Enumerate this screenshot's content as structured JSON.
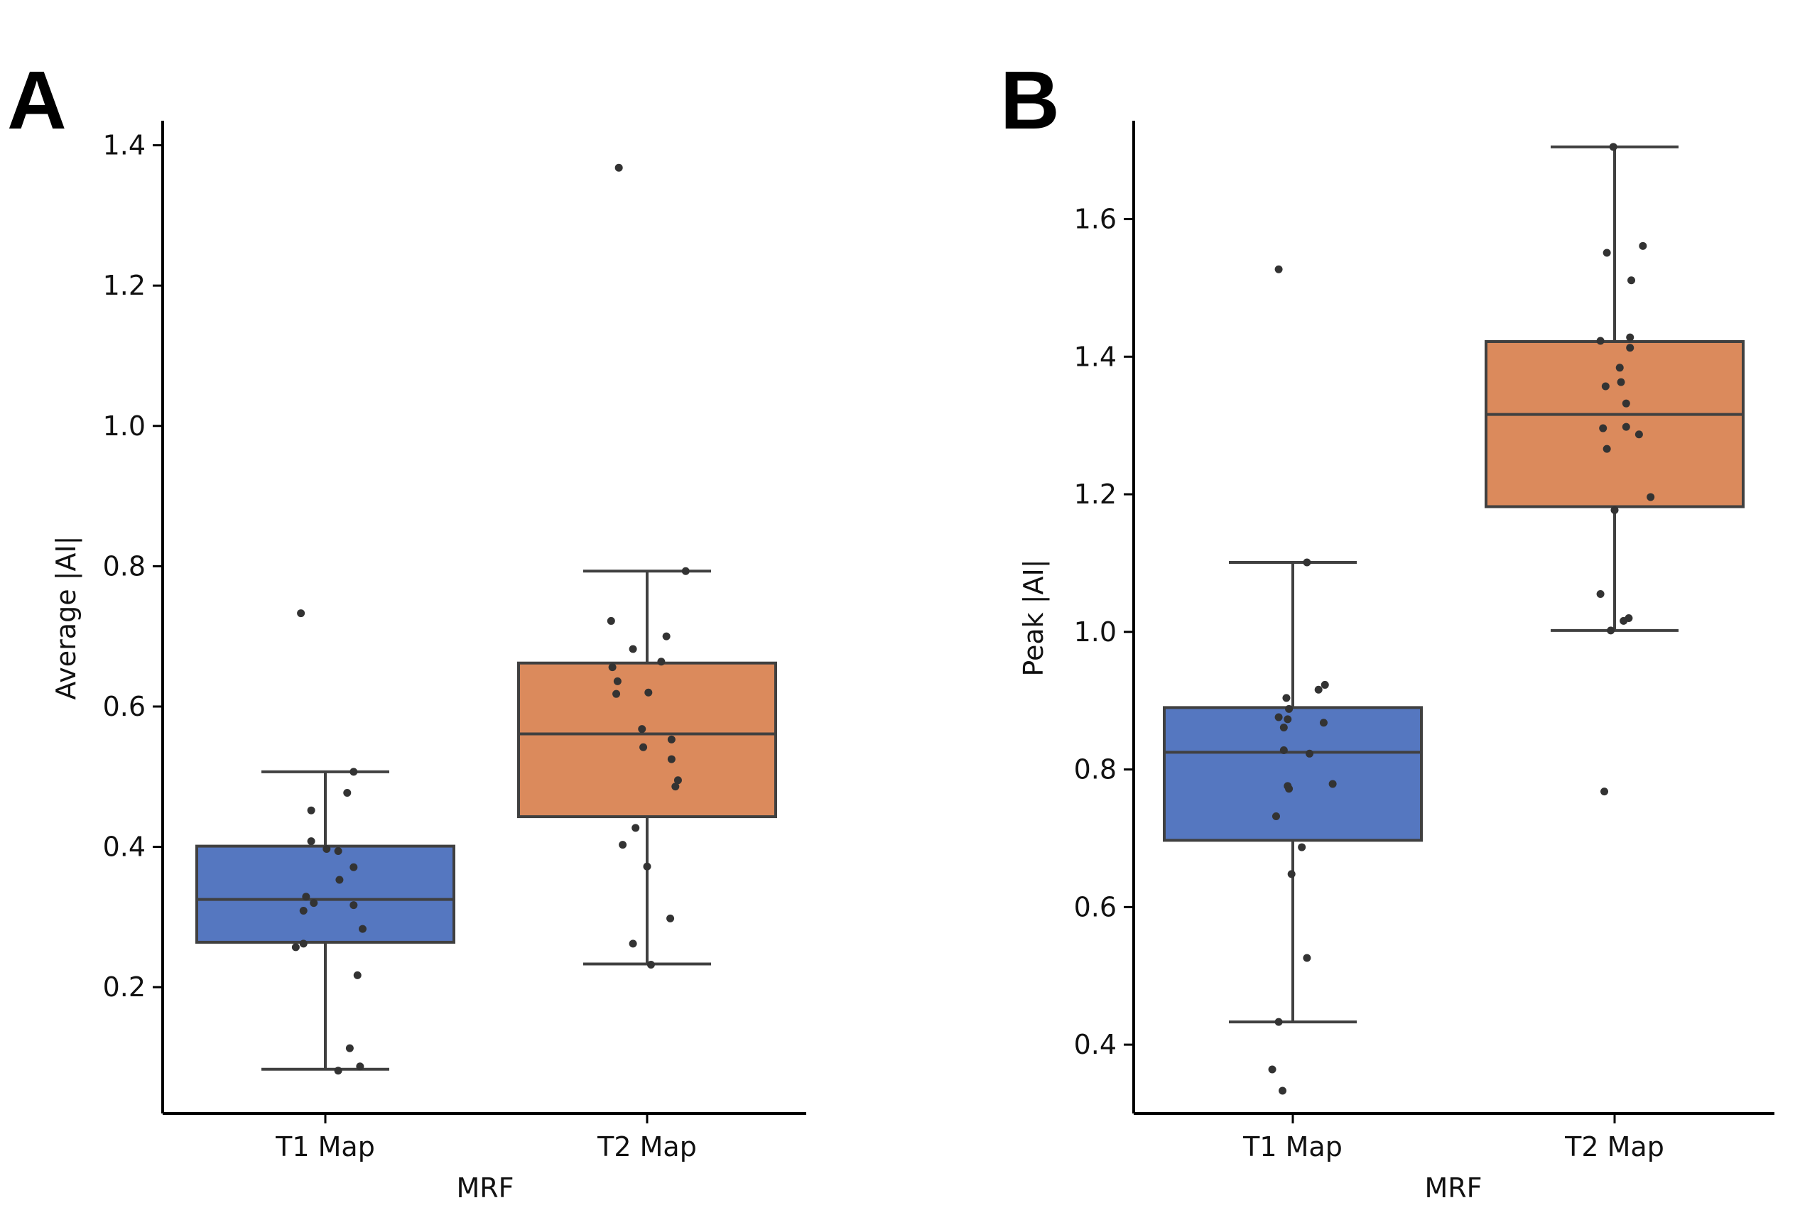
{
  "chart_data": [
    {
      "type": "box",
      "panel": "A",
      "xlabel": "MRF",
      "ylabel": "Average |AI|",
      "categories": [
        "T1 Map",
        "T2 Map"
      ],
      "ylim": [
        0.02,
        1.435
      ],
      "yticks": [
        0.2,
        0.4,
        0.6,
        0.8,
        1.0,
        1.2,
        1.4
      ],
      "ytick_labels": [
        "0.2",
        "0.4",
        "0.6",
        "0.8",
        "1.0",
        "1.2",
        "1.4"
      ],
      "boxes": [
        {
          "category": "T1 Map",
          "color": "#5577c0",
          "whisker_low": 0.083,
          "q1": 0.264,
          "median": 0.325,
          "q3": 0.401,
          "whisker_high": 0.507
        },
        {
          "category": "T2 Map",
          "color": "#db8a5c",
          "whisker_low": 0.233,
          "q1": 0.443,
          "median": 0.561,
          "q3": 0.662,
          "whisker_high": 0.793
        }
      ],
      "points": [
        {
          "category": "T1 Map",
          "values": [
            0.733,
            0.507,
            0.477,
            0.452,
            0.408,
            0.397,
            0.394,
            0.371,
            0.353,
            0.329,
            0.32,
            0.317,
            0.309,
            0.283,
            0.262,
            0.257,
            0.217,
            0.113,
            0.087,
            0.081
          ],
          "jitter": [
            -0.19,
            0.22,
            0.17,
            -0.11,
            -0.11,
            0.01,
            0.1,
            0.22,
            0.11,
            -0.15,
            -0.09,
            0.22,
            -0.17,
            0.29,
            -0.17,
            -0.23,
            0.25,
            0.19,
            0.27,
            0.1
          ]
        },
        {
          "category": "T2 Map",
          "values": [
            1.368,
            0.793,
            0.722,
            0.7,
            0.682,
            0.664,
            0.656,
            0.636,
            0.62,
            0.618,
            0.568,
            0.553,
            0.542,
            0.525,
            0.495,
            0.486,
            0.427,
            0.403,
            0.372,
            0.298,
            0.262,
            0.232
          ],
          "jitter": [
            -0.22,
            0.3,
            -0.28,
            0.15,
            -0.11,
            0.11,
            -0.27,
            -0.23,
            0.01,
            -0.24,
            -0.04,
            0.19,
            -0.03,
            0.19,
            0.24,
            0.22,
            -0.09,
            -0.19,
            0.0,
            0.18,
            -0.11,
            0.03
          ]
        }
      ]
    },
    {
      "type": "box",
      "panel": "B",
      "xlabel": "MRF",
      "ylabel": "Peak |AI|",
      "categories": [
        "T1 Map",
        "T2 Map"
      ],
      "ylim": [
        0.3,
        1.743
      ],
      "yticks": [
        0.4,
        0.6,
        0.8,
        1.0,
        1.2,
        1.4,
        1.6
      ],
      "ytick_labels": [
        "0.4",
        "0.6",
        "0.8",
        "1.0",
        "1.2",
        "1.4",
        "1.6"
      ],
      "boxes": [
        {
          "category": "T1 Map",
          "color": "#5577c0",
          "whisker_low": 0.433,
          "q1": 0.697,
          "median": 0.825,
          "q3": 0.89,
          "whisker_high": 1.101
        },
        {
          "category": "T2 Map",
          "color": "#db8a5c",
          "whisker_low": 1.002,
          "q1": 1.182,
          "median": 1.316,
          "q3": 1.422,
          "whisker_high": 1.705
        }
      ],
      "points": [
        {
          "category": "T1 Map",
          "values": [
            1.527,
            1.101,
            0.923,
            0.916,
            0.904,
            0.888,
            0.876,
            0.873,
            0.868,
            0.861,
            0.828,
            0.823,
            0.779,
            0.776,
            0.772,
            0.732,
            0.687,
            0.648,
            0.526,
            0.433,
            0.364,
            0.333
          ],
          "jitter": [
            -0.11,
            0.11,
            0.25,
            0.2,
            -0.05,
            -0.03,
            -0.11,
            -0.04,
            0.24,
            -0.07,
            -0.07,
            0.13,
            0.31,
            -0.04,
            -0.03,
            -0.13,
            0.07,
            -0.01,
            0.11,
            -0.11,
            -0.16,
            -0.08
          ]
        },
        {
          "category": "T2 Map",
          "values": [
            1.705,
            1.561,
            1.551,
            1.511,
            1.428,
            1.423,
            1.413,
            1.384,
            1.363,
            1.357,
            1.332,
            1.298,
            1.296,
            1.287,
            1.266,
            1.196,
            1.177,
            1.055,
            1.02,
            1.016,
            1.002,
            0.768
          ],
          "jitter": [
            -0.01,
            0.22,
            -0.06,
            0.13,
            0.12,
            -0.11,
            0.12,
            0.04,
            0.05,
            -0.07,
            0.09,
            0.09,
            -0.09,
            0.19,
            -0.06,
            0.28,
            0.0,
            -0.11,
            0.11,
            0.07,
            -0.03,
            -0.08
          ]
        }
      ]
    }
  ]
}
